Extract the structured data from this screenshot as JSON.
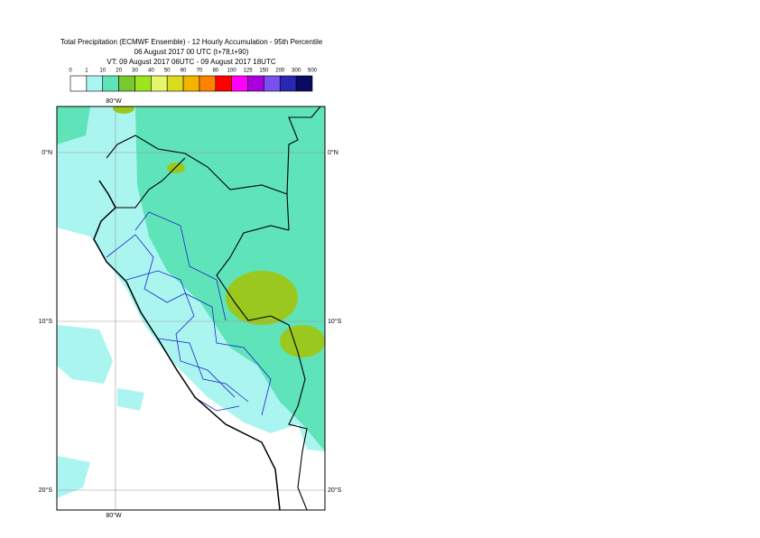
{
  "title": {
    "line1": "Total Precipitation (ECMWF Ensemble) - 12 Hourly Accumulation - 95th Percentile",
    "line2": "06 August 2017 00 UTC (t+78,t+90)",
    "line3": "VT: 09 August 2017 06UTC - 09 August 2017 18UTC"
  },
  "legend": {
    "labels": [
      "0",
      "1",
      "10",
      "20",
      "30",
      "40",
      "50",
      "60",
      "70",
      "80",
      "100",
      "125",
      "150",
      "200",
      "300",
      "500"
    ],
    "colors": [
      "#ffffff",
      "#aaf5f0",
      "#5fe3b9",
      "#78c832",
      "#9be61e",
      "#e6f56e",
      "#dcdc1e",
      "#f5b400",
      "#ff8200",
      "#ff0000",
      "#ff00ff",
      "#aa00dc",
      "#7850f0",
      "#2828b4",
      "#0a0a64"
    ]
  },
  "map": {
    "lon_labels": [
      "80°W"
    ],
    "lat_labels": [
      "0°N",
      "10°S",
      "20°S"
    ]
  }
}
